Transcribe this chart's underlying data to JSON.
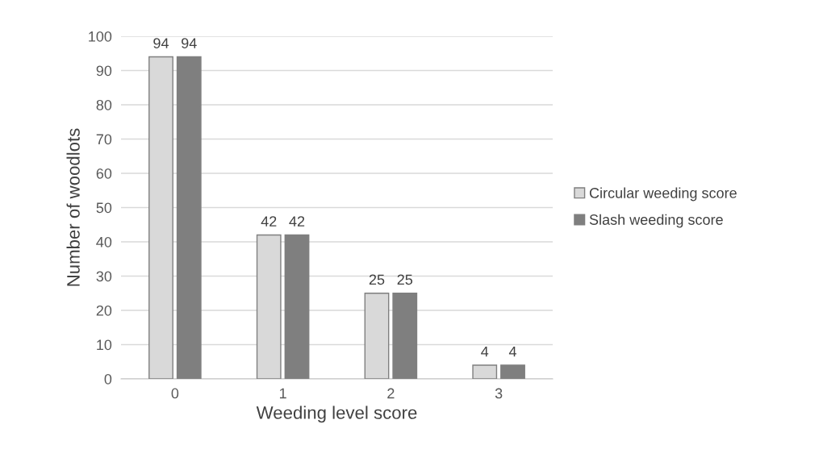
{
  "chart_data": {
    "type": "bar",
    "xlabel": "Weeding level score",
    "ylabel": "Number of woodlots",
    "categories": [
      "0",
      "1",
      "2",
      "3"
    ],
    "series": [
      {
        "name": "Circular weeding score",
        "color": "#d9d9d9",
        "values": [
          94,
          42,
          25,
          4
        ]
      },
      {
        "name": "Slash weeding score",
        "color": "#7f7f7f",
        "values": [
          94,
          42,
          25,
          4
        ]
      }
    ],
    "ylim": [
      0,
      100
    ],
    "yticks": [
      0,
      10,
      20,
      30,
      40,
      50,
      60,
      70,
      80,
      90,
      100
    ],
    "grid": "y",
    "legend": "right",
    "data_labels": true
  }
}
